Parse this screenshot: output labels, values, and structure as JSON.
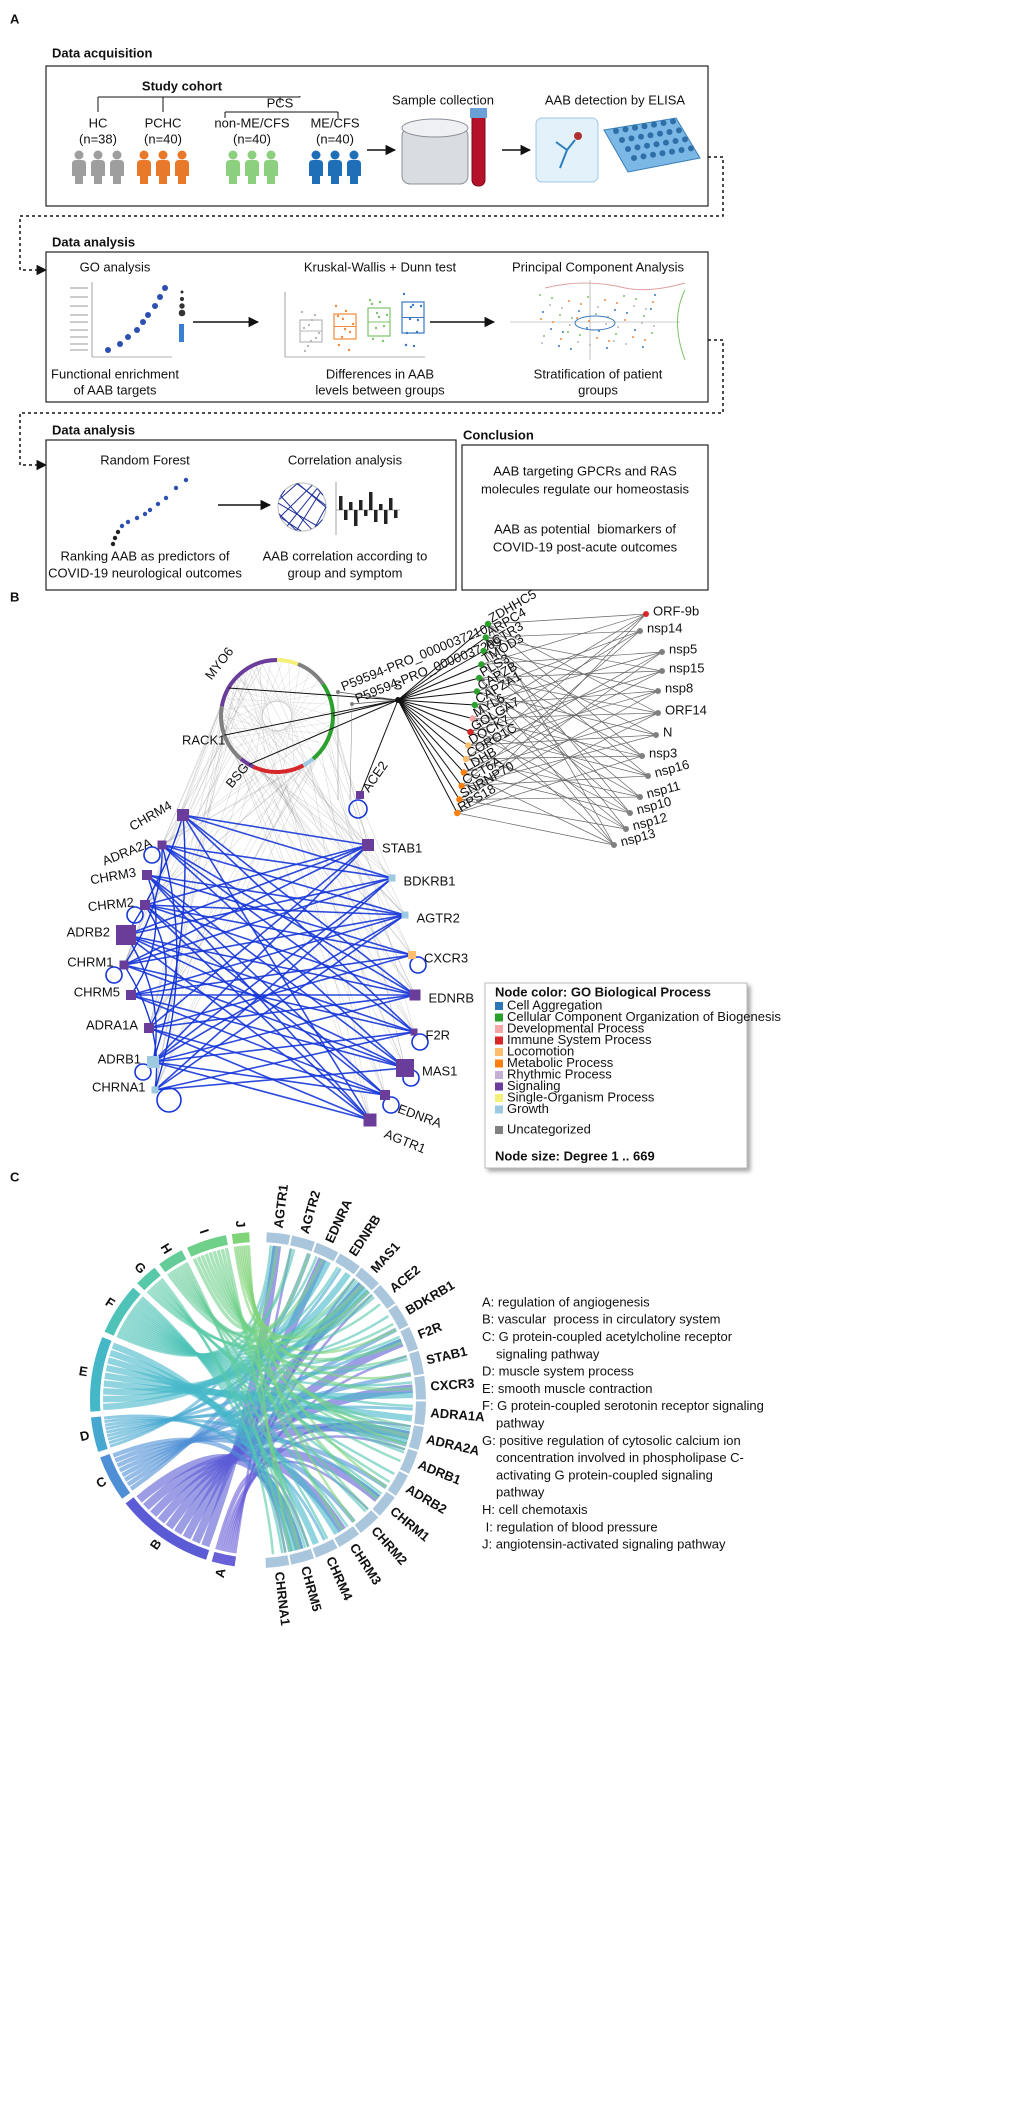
{
  "panel_a": {
    "label": "A",
    "acquisition": {
      "title": "Data acquisition",
      "cohort_title": "Study cohort",
      "pcs": "PCS",
      "groups": [
        {
          "name": "HC",
          "n": "(n=38)",
          "color": "#9e9e9e"
        },
        {
          "name": "PCHC",
          "n": "(n=40)",
          "color": "#e8782a"
        },
        {
          "name": "non-ME/CFS",
          "n": "(n=40)",
          "color": "#8ccf7e"
        },
        {
          "name": "ME/CFS",
          "n": "(n=40)",
          "color": "#1f6fb8"
        }
      ],
      "steps": [
        "Sample collection",
        "AAB detection by ELISA"
      ]
    },
    "analysis_1": {
      "title": "Data analysis",
      "boxes": [
        {
          "title": "GO analysis",
          "caption": [
            "Functional enrichment",
            "of AAB targets"
          ]
        },
        {
          "title": "Kruskal-Wallis + Dunn test",
          "caption": [
            "Differences in AAB",
            "levels between groups"
          ]
        },
        {
          "title": "Principal Component Analysis",
          "caption": [
            "Stratification of patient",
            "groups"
          ]
        }
      ]
    },
    "analysis_2": {
      "title": "Data analysis",
      "boxes": [
        {
          "title": "Random Forest",
          "caption": [
            "Ranking AAB as predictors of",
            "COVID-19 neurological outcomes"
          ]
        },
        {
          "title": "Correlation analysis",
          "caption": [
            "AAB correlation according to",
            "group and symptom"
          ]
        }
      ]
    },
    "conclusion": {
      "title": "Conclusion",
      "statements": [
        [
          "AAB targeting GPCRs and RAS",
          "molecules regulate our homeostasis"
        ],
        [
          "AAB as potential  biomarkers of",
          "COVID-19 post-acute outcomes"
        ]
      ]
    }
  },
  "panel_b": {
    "label": "B",
    "ring": [
      "MYO6",
      "RACK1",
      "BSG"
    ],
    "ace2": "ACE2",
    "spike": "S",
    "spike_fragments": [
      "P59594-PRO_0000037210",
      "P59594-PRO_0000037209"
    ],
    "left_nodes": [
      {
        "label": "CHRM4",
        "color": "#6a3d9a"
      },
      {
        "label": "ADRA2A",
        "color": "#6a3d9a"
      },
      {
        "label": "CHRM3",
        "color": "#6a3d9a"
      },
      {
        "label": "CHRM2",
        "color": "#6a3d9a"
      },
      {
        "label": "ADRB2",
        "color": "#6a3d9a"
      },
      {
        "label": "CHRM1",
        "color": "#6a3d9a"
      },
      {
        "label": "CHRM5",
        "color": "#6a3d9a"
      },
      {
        "label": "ADRA1A",
        "color": "#6a3d9a"
      },
      {
        "label": "ADRB1",
        "color": "#9ecae1"
      },
      {
        "label": "CHRNA1",
        "color": "#9ecae1"
      }
    ],
    "right_nodes": [
      {
        "label": "STAB1",
        "color": "#6a3d9a"
      },
      {
        "label": "BDKRB1",
        "color": "#9ecae1"
      },
      {
        "label": "AGTR2",
        "color": "#9ecae1"
      },
      {
        "label": "CXCR3",
        "color": "#fdbf6f"
      },
      {
        "label": "EDNRB",
        "color": "#6a3d9a"
      },
      {
        "label": "F2R",
        "color": "#6a3d9a"
      },
      {
        "label": "MAS1",
        "color": "#6a3d9a"
      },
      {
        "label": "EDNRA",
        "color": "#6a3d9a"
      },
      {
        "label": "AGTR1",
        "color": "#6a3d9a"
      }
    ],
    "host_proteins": [
      {
        "label": "ZDHHC5",
        "color": "#2ca02c"
      },
      {
        "label": "ARPC4",
        "color": "#2ca02c"
      },
      {
        "label": "ACTR3",
        "color": "#2ca02c"
      },
      {
        "label": "TMOD3",
        "color": "#2ca02c"
      },
      {
        "label": "PLS3",
        "color": "#2ca02c"
      },
      {
        "label": "CAPZB",
        "color": "#2ca02c"
      },
      {
        "label": "CAPZA1",
        "color": "#2ca02c"
      },
      {
        "label": "MYL6",
        "color": "#f4a6a6"
      },
      {
        "label": "GOLGA7",
        "color": "#d62728"
      },
      {
        "label": "DOCK7",
        "color": "#fdbf6f"
      },
      {
        "label": "CORO1C",
        "color": "#fdbf6f"
      },
      {
        "label": "LDHB",
        "color": "#ff7f0e"
      },
      {
        "label": "CCT6A",
        "color": "#ff7f0e"
      },
      {
        "label": "SNRNP70",
        "color": "#ff7f0e"
      },
      {
        "label": "RPS18",
        "color": "#ff7f0e"
      }
    ],
    "viral_proteins": [
      {
        "label": "ORF-9b",
        "color": "#d62728"
      },
      {
        "label": "nsp14",
        "color": "#808080"
      },
      {
        "label": "nsp5",
        "color": "#808080"
      },
      {
        "label": "nsp15",
        "color": "#808080"
      },
      {
        "label": "nsp8",
        "color": "#808080"
      },
      {
        "label": "ORF14",
        "color": "#808080"
      },
      {
        "label": "N",
        "color": "#808080"
      },
      {
        "label": "nsp3",
        "color": "#808080"
      },
      {
        "label": "nsp16",
        "color": "#808080"
      },
      {
        "label": "nsp11",
        "color": "#808080"
      },
      {
        "label": "nsp10",
        "color": "#808080"
      },
      {
        "label": "nsp12",
        "color": "#808080"
      },
      {
        "label": "nsp13",
        "color": "#808080"
      }
    ],
    "legend": {
      "title": "Node color: GO Biological Process",
      "items": [
        {
          "label": "Cell Aggregation",
          "color": "#2e75b6"
        },
        {
          "label": "Cellular Component Organization of Biogenesis",
          "color": "#2ca02c"
        },
        {
          "label": "Developmental Process",
          "color": "#f4a6a6"
        },
        {
          "label": "Immune System Process",
          "color": "#d62728"
        },
        {
          "label": "Locomotion",
          "color": "#fdbf6f"
        },
        {
          "label": "Metabolic Process",
          "color": "#ff7f0e"
        },
        {
          "label": "Rhythmic Process",
          "color": "#c5b0d5"
        },
        {
          "label": "Signaling",
          "color": "#6a3d9a"
        },
        {
          "label": "Single-Organism Process",
          "color": "#f5f07a"
        },
        {
          "label": "Growth",
          "color": "#9ecae1"
        }
      ],
      "uncategorized": {
        "label": "Uncategorized",
        "color": "#808080"
      },
      "size_note": "Node size: Degree 1 .. 669"
    }
  },
  "panel_c": {
    "label": "C",
    "processes": [
      {
        "label": "A",
        "color": "#6a60d8"
      },
      {
        "label": "B",
        "color": "#5b5bd6"
      },
      {
        "label": "C",
        "color": "#4f8fd6"
      },
      {
        "label": "D",
        "color": "#46a8d0"
      },
      {
        "label": "E",
        "color": "#45b8c8"
      },
      {
        "label": "F",
        "color": "#4fc3b8"
      },
      {
        "label": "G",
        "color": "#58c9a8"
      },
      {
        "label": "H",
        "color": "#64cc98"
      },
      {
        "label": "I",
        "color": "#6fd08a"
      },
      {
        "label": "J",
        "color": "#80d478"
      }
    ],
    "genes": [
      "AGTR1",
      "AGTR2",
      "EDNRA",
      "EDNRB",
      "MAS1",
      "ACE2",
      "BDKRB1",
      "F2R",
      "STAB1",
      "CXCR3",
      "ADRA1A",
      "ADRA2A",
      "ADRB1",
      "ADRB2",
      "CHRM1",
      "CHRM2",
      "CHRM3",
      "CHRM4",
      "CHRM5",
      "CHRNA1"
    ],
    "legend": [
      [
        "A: regulation of angiogenesis"
      ],
      [
        "B: vascular  process in circulatory system"
      ],
      [
        "C: G protein-coupled acetylcholine receptor",
        "signaling pathway"
      ],
      [
        "D: muscle system process"
      ],
      [
        "E: smooth muscle contraction"
      ],
      [
        "F: G protein-coupled serotonin receptor signaling",
        "pathway"
      ],
      [
        "G: positive regulation of cytosolic calcium ion",
        "concentration involved in phospholipase C-",
        "activating G protein-coupled signaling",
        "pathway"
      ],
      [
        "H: cell chemotaxis"
      ],
      [
        " I: regulation of blood pressure"
      ],
      [
        "J: angiotensin-activated signaling pathway"
      ]
    ]
  }
}
